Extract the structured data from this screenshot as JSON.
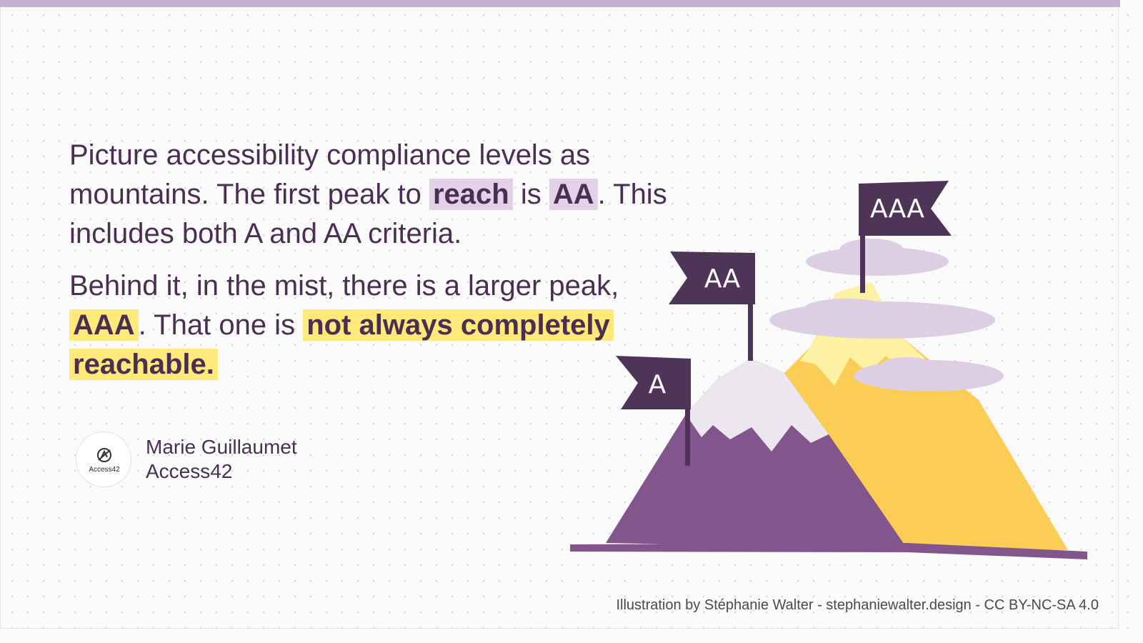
{
  "quote": {
    "p1_text1": "Picture accessibility compliance levels as mountains. The first peak to ",
    "p1_hl1": "reach",
    "p1_text2": " is ",
    "p1_hl2": "AA",
    "p1_text3": ". This includes both A and AA criteria.",
    "p2_text1": "Behind it, in the mist, there is a larger peak, ",
    "p2_hl1": "AAA",
    "p2_text2": ". That one is ",
    "p2_hl2": "not always completely reachable."
  },
  "author": {
    "name": "Marie Guillaumet",
    "org": "Access42",
    "logo_text": "Access42"
  },
  "illustration": {
    "flags": {
      "a": "A",
      "aa": "AA",
      "aaa": "AAA"
    }
  },
  "credit": "Illustration by Stéphanie Walter - stephaniewalter.design  - CC BY-NC-SA 4.0",
  "colors": {
    "purple_text": "#4a2f52",
    "purple_highlight": "#e2d1e8",
    "yellow_highlight": "#ffe97a",
    "top_bar": "#c8aed3",
    "mountain_purple": "#82568c",
    "mountain_yellow": "#fccd54",
    "flag": "#4e3557",
    "cloud": "#dccfe3"
  }
}
